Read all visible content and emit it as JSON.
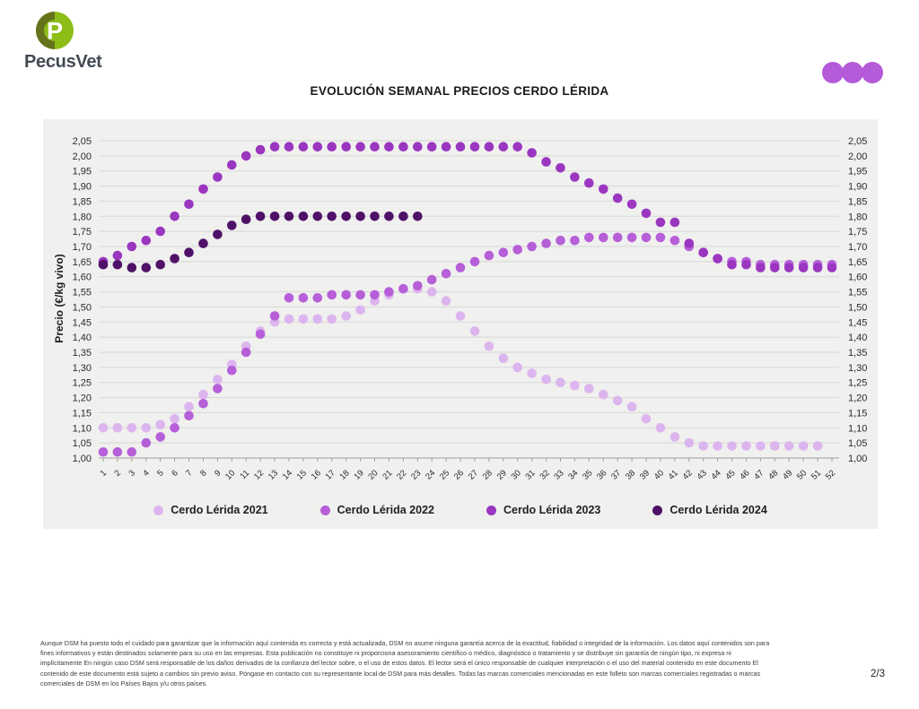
{
  "brand": {
    "logo_text": "PecusVet",
    "logo_letter": "P"
  },
  "header": {
    "dots_count": 3,
    "dots_color": "#b55ad8"
  },
  "chart_data": {
    "type": "scatter",
    "title": "EVOLUCIÓN SEMANAL PRECIOS CERDO LÉRIDA",
    "xlabel": "",
    "ylabel": "Precio (€/kg vivo)",
    "ylim": [
      1.0,
      2.05
    ],
    "ytick_step": 0.05,
    "decimal_separator": ",",
    "grid": true,
    "legend_position": "bottom",
    "panel_background": "#f0f0ef",
    "gridline_color": "#d7d7d5",
    "axis_color": "#9e9e9e",
    "x": [
      1,
      2,
      3,
      4,
      5,
      6,
      7,
      8,
      9,
      10,
      11,
      12,
      13,
      14,
      15,
      16,
      17,
      18,
      19,
      20,
      21,
      22,
      23,
      24,
      25,
      26,
      27,
      28,
      29,
      30,
      31,
      32,
      33,
      34,
      35,
      36,
      37,
      38,
      39,
      40,
      41,
      42,
      43,
      44,
      45,
      46,
      47,
      48,
      49,
      50,
      51,
      52
    ],
    "series": [
      {
        "name": "Cerdo Lérida 2021",
        "color": "#dcb5ee",
        "values": [
          1.1,
          1.1,
          1.1,
          1.1,
          1.11,
          1.13,
          1.17,
          1.21,
          1.26,
          1.31,
          1.37,
          1.42,
          1.45,
          1.46,
          1.46,
          1.46,
          1.46,
          1.47,
          1.49,
          1.52,
          1.54,
          1.56,
          1.56,
          1.55,
          1.52,
          1.47,
          1.42,
          1.37,
          1.33,
          1.3,
          1.28,
          1.26,
          1.25,
          1.24,
          1.23,
          1.21,
          1.19,
          1.17,
          1.13,
          1.1,
          1.07,
          1.05,
          1.04,
          1.04,
          1.04,
          1.04,
          1.04,
          1.04,
          1.04,
          1.04,
          1.04,
          null
        ]
      },
      {
        "name": "Cerdo Lérida 2022",
        "color": "#b65fd8",
        "values": [
          1.02,
          1.02,
          1.02,
          1.05,
          1.07,
          1.1,
          1.14,
          1.18,
          1.23,
          1.29,
          1.35,
          1.41,
          1.47,
          1.53,
          1.53,
          1.53,
          1.54,
          1.54,
          1.54,
          1.54,
          1.55,
          1.56,
          1.57,
          1.59,
          1.61,
          1.63,
          1.65,
          1.67,
          1.68,
          1.69,
          1.7,
          1.71,
          1.72,
          1.72,
          1.73,
          1.73,
          1.73,
          1.73,
          1.73,
          1.73,
          1.72,
          1.7,
          1.68,
          1.66,
          1.65,
          1.65,
          1.64,
          1.64,
          1.64,
          1.64,
          1.64,
          1.64
        ]
      },
      {
        "name": "Cerdo Lérida 2023",
        "color": "#9a36c0",
        "values": [
          1.65,
          1.67,
          1.7,
          1.72,
          1.75,
          1.8,
          1.84,
          1.89,
          1.93,
          1.97,
          2.0,
          2.02,
          2.03,
          2.03,
          2.03,
          2.03,
          2.03,
          2.03,
          2.03,
          2.03,
          2.03,
          2.03,
          2.03,
          2.03,
          2.03,
          2.03,
          2.03,
          2.03,
          2.03,
          2.03,
          2.01,
          1.98,
          1.96,
          1.93,
          1.91,
          1.89,
          1.86,
          1.84,
          1.81,
          1.78,
          1.78,
          1.71,
          1.68,
          1.66,
          1.64,
          1.64,
          1.63,
          1.63,
          1.63,
          1.63,
          1.63,
          1.63
        ]
      },
      {
        "name": "Cerdo Lérida 2024",
        "color": "#4f1168",
        "values": [
          1.64,
          1.64,
          1.63,
          1.63,
          1.64,
          1.66,
          1.68,
          1.71,
          1.74,
          1.77,
          1.79,
          1.8,
          1.8,
          1.8,
          1.8,
          1.8,
          1.8,
          1.8,
          1.8,
          1.8,
          1.8,
          1.8,
          1.8,
          null,
          null,
          null,
          null,
          null,
          null,
          null,
          null,
          null,
          null,
          null,
          null,
          null,
          null,
          null,
          null,
          null,
          null,
          null,
          null,
          null,
          null,
          null,
          null,
          null,
          null,
          null,
          null,
          null
        ]
      }
    ]
  },
  "footer": {
    "lines": [
      "Aunque DSM ha puesto todo el cuidado para garantizar que la información aquí contenida es correcta y está actualizada, DSM no asume ninguna garantía acerca de la exactitud, fiabilidad o integridad de la información. Los datos aquí contenidos son para",
      "fines informativos y están destinados solamente para su uso en las empresas. Esta publicación no constituye ni proporciona asesoramiento científico o médico, diagnóstico o tratamiento y se distribuye sin garantía de ningún tipo, ni expresa ni",
      "implícitamente En ningún caso DSM será responsable de los daños derivados de la confianza del lector sobre, o el uso de estos datos. El lector será el único responsable de cualquier interpretación o el uso del material contenido en este documento El",
      "contenido de este documento está sujeto a cambios sin previo aviso. Póngase en contacto con su representante local de DSM para más detalles. Todas las marcas comerciales mencionadas en este folleto son marcas comerciales registradas o marcas",
      "comerciales de DSM en los Países Bajos y/u otros países."
    ],
    "page": "2/3"
  }
}
